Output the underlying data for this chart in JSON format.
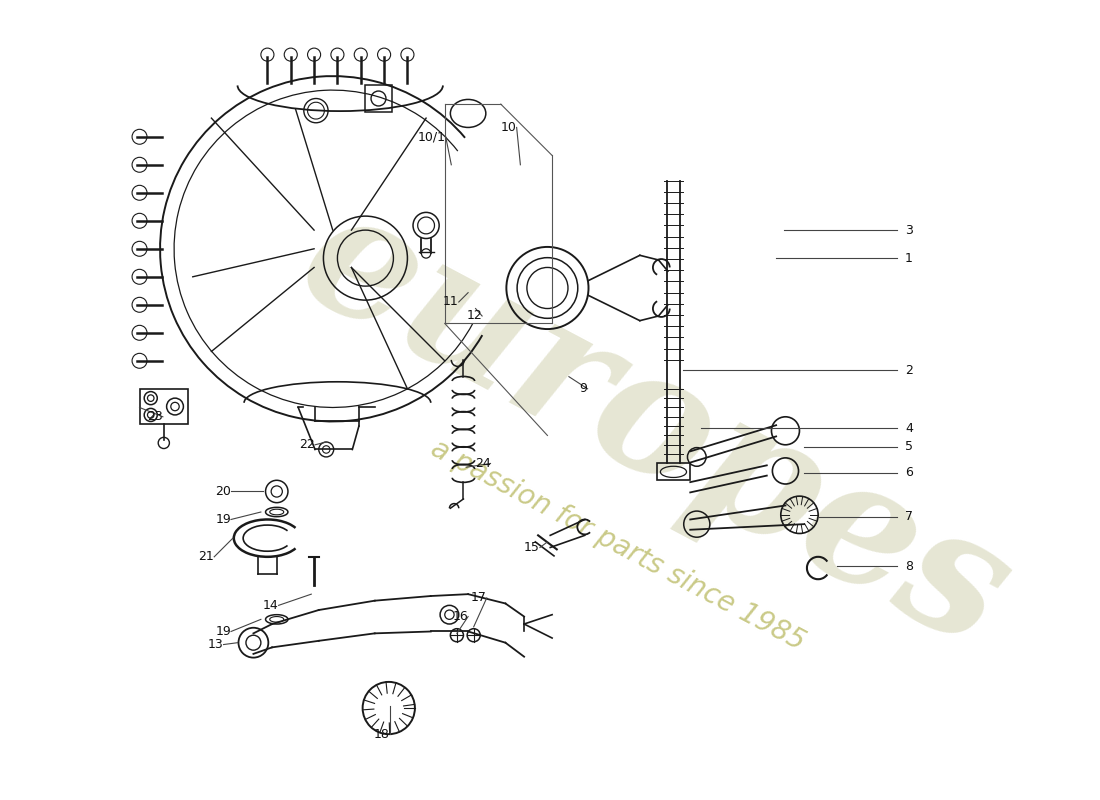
{
  "background_color": "#ffffff",
  "line_color": "#1a1a1a",
  "watermark1": "europes",
  "watermark2": "a passion for parts since 1985",
  "wm_color1": "#c8c8a0",
  "wm_color2": "#b8b860",
  "labels": [
    [
      "1",
      830,
      248
    ],
    [
      "2",
      960,
      368
    ],
    [
      "3",
      838,
      218
    ],
    [
      "4",
      960,
      430
    ],
    [
      "5",
      960,
      455
    ],
    [
      "6",
      960,
      480
    ],
    [
      "7",
      960,
      535
    ],
    [
      "8",
      960,
      588
    ],
    [
      "9",
      628,
      388
    ],
    [
      "10",
      548,
      108
    ],
    [
      "10/1",
      478,
      118
    ],
    [
      "11",
      490,
      292
    ],
    [
      "12",
      514,
      308
    ],
    [
      "13",
      240,
      660
    ],
    [
      "14",
      298,
      618
    ],
    [
      "15",
      578,
      558
    ],
    [
      "16",
      502,
      630
    ],
    [
      "17",
      520,
      610
    ],
    [
      "18",
      418,
      758
    ],
    [
      "19",
      248,
      528
    ],
    [
      "19",
      248,
      648
    ],
    [
      "20",
      248,
      498
    ],
    [
      "21",
      230,
      568
    ],
    [
      "22",
      338,
      448
    ],
    [
      "23",
      175,
      418
    ],
    [
      "24",
      525,
      468
    ]
  ]
}
